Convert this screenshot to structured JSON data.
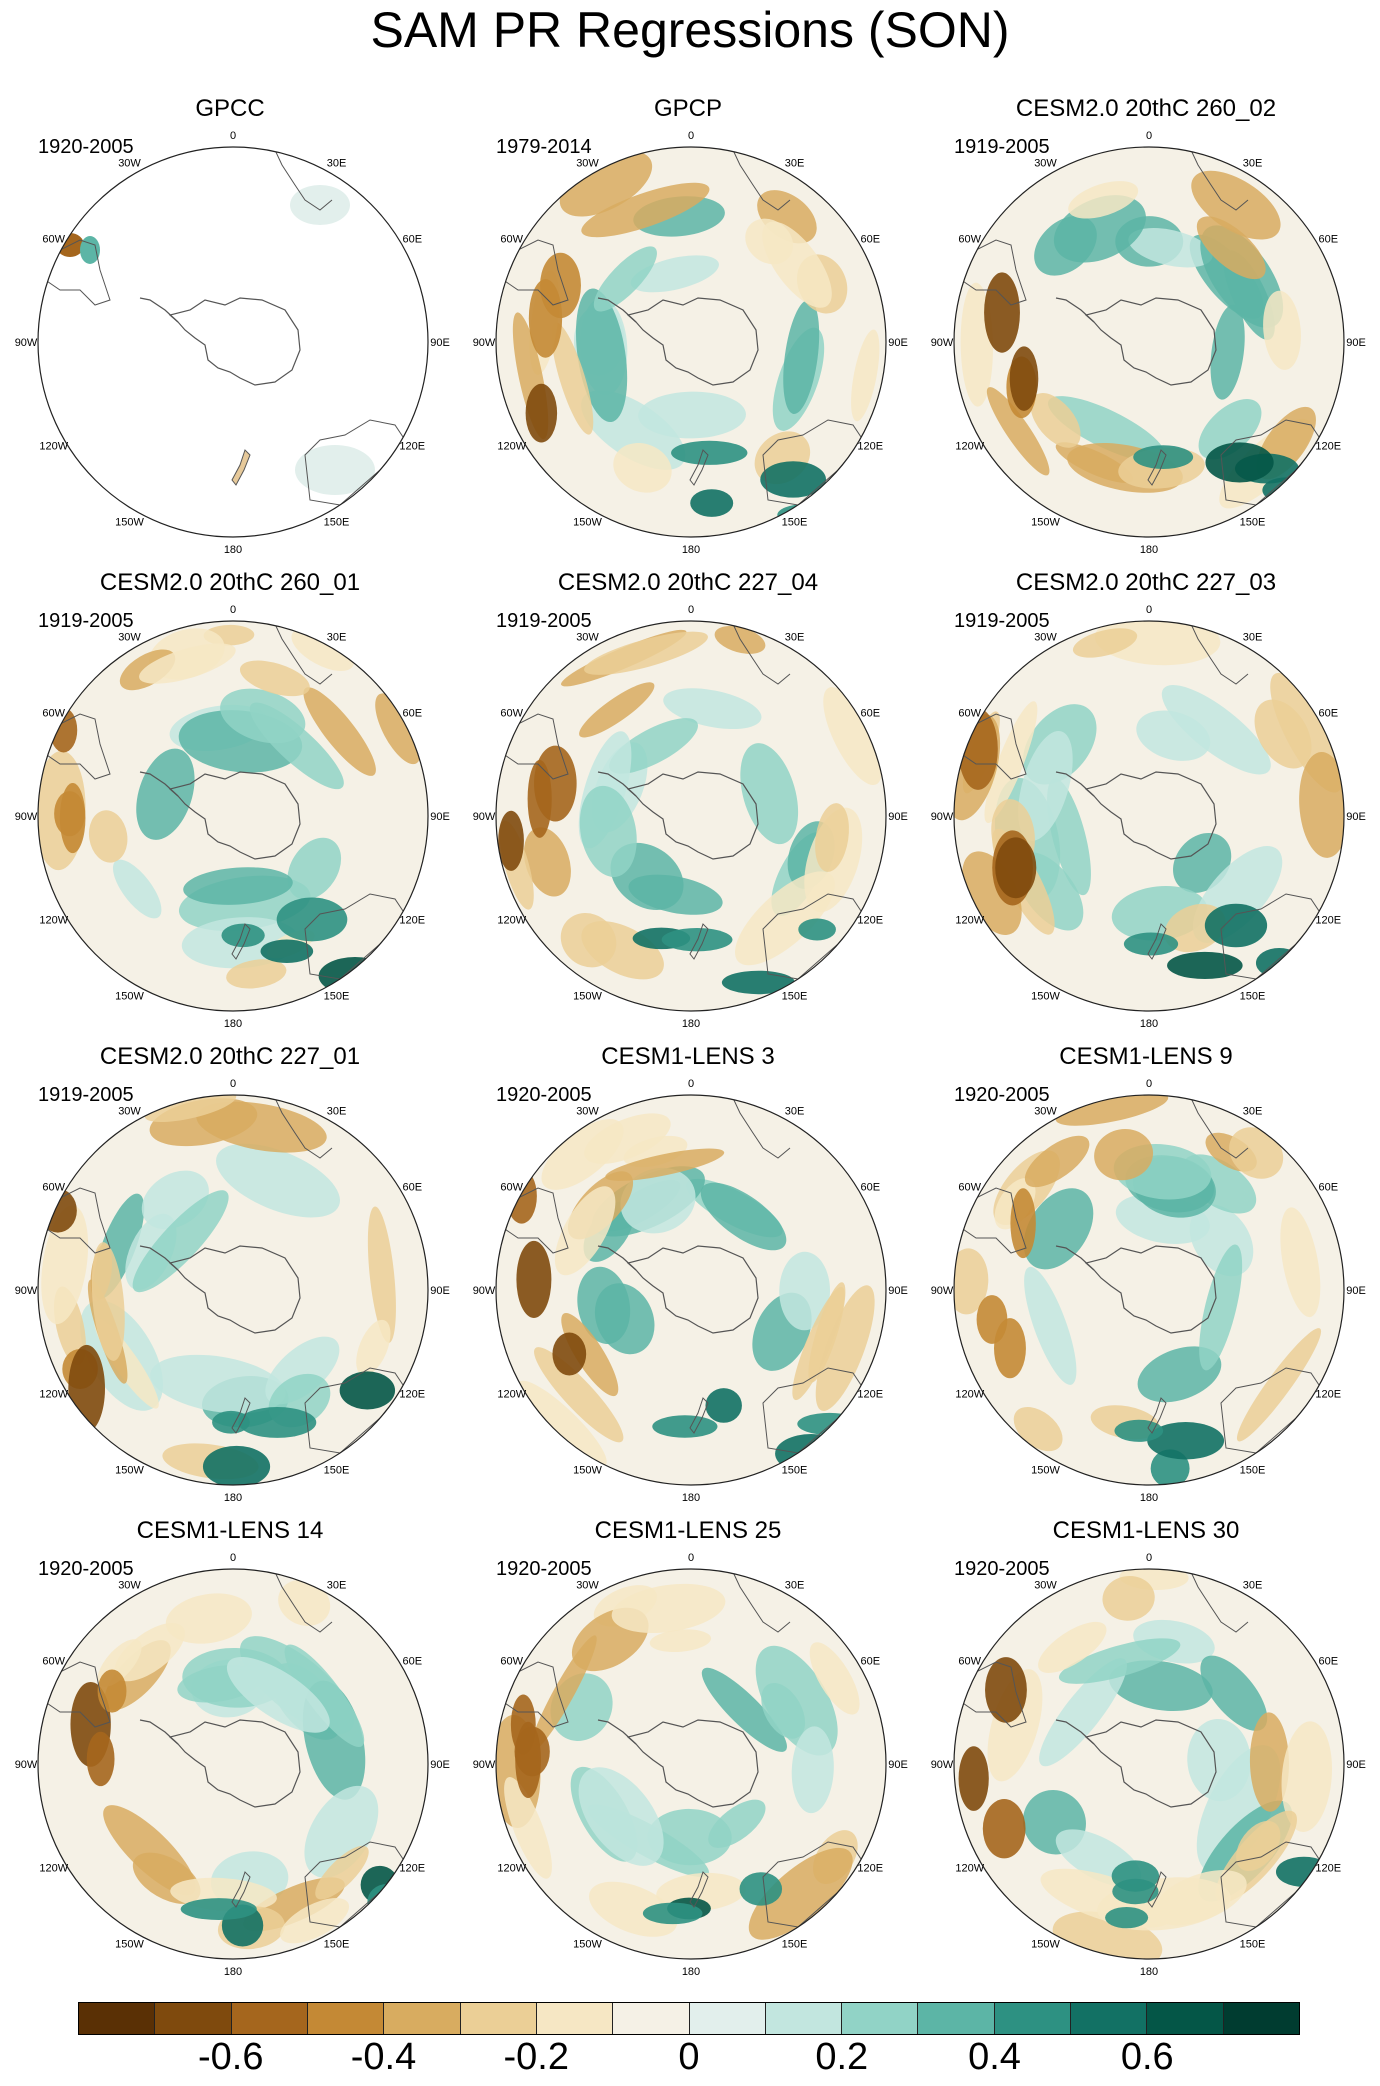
{
  "title": "SAM PR Regressions (SON)",
  "panels": [
    {
      "title": "GPCC",
      "period": "1920-2005",
      "land_only": true
    },
    {
      "title": "GPCP",
      "period": "1979-2014",
      "land_only": false
    },
    {
      "title": "CESM2.0 20thC 260_02",
      "period": "1919-2005",
      "land_only": false
    },
    {
      "title": "CESM2.0 20thC 260_01",
      "period": "1919-2005",
      "land_only": false
    },
    {
      "title": "CESM2.0 20thC 227_04",
      "period": "1919-2005",
      "land_only": false
    },
    {
      "title": "CESM2.0 20thC 227_03",
      "period": "1919-2005",
      "land_only": false
    },
    {
      "title": "CESM2.0 20thC 227_01",
      "period": "1919-2005",
      "land_only": false
    },
    {
      "title": "CESM1-LENS 3",
      "period": "1920-2005",
      "land_only": false
    },
    {
      "title": "CESM1-LENS 9",
      "period": "1920-2005",
      "land_only": false
    },
    {
      "title": "CESM1-LENS 14",
      "period": "1920-2005",
      "land_only": false
    },
    {
      "title": "CESM1-LENS 25",
      "period": "1920-2005",
      "land_only": false
    },
    {
      "title": "CESM1-LENS 30",
      "period": "1920-2005",
      "land_only": false
    }
  ],
  "lon_labels": [
    "0",
    "30E",
    "60E",
    "90E",
    "120E",
    "150E",
    "180",
    "150W",
    "120W",
    "90W",
    "60W",
    "30W"
  ],
  "colorbar": {
    "colors": [
      "#5a3005",
      "#7f4a0d",
      "#a5661d",
      "#c48935",
      "#d8ac60",
      "#ebcf96",
      "#f6e7c4",
      "#f5f1e6",
      "#e2efec",
      "#c2e6df",
      "#91d3c6",
      "#5cb5a6",
      "#2d9182",
      "#127164",
      "#045647",
      "#003c30"
    ],
    "ticks": [
      "-0.6",
      "-0.4",
      "-0.2",
      "0",
      "0.2",
      "0.4",
      "0.6"
    ]
  }
}
